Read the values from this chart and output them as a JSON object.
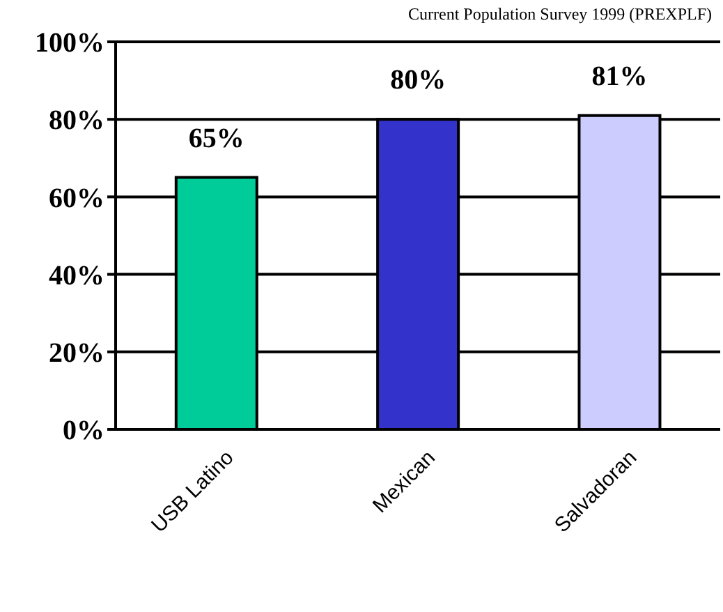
{
  "chart_data": {
    "type": "bar",
    "categories": [
      "USB Latino",
      "Mexican",
      "Salvadoran"
    ],
    "values": [
      65,
      80,
      81
    ],
    "colors": [
      "#00cc99",
      "#3333cc",
      "#ccccff"
    ],
    "value_labels": [
      "65%",
      "80%",
      "81%"
    ],
    "ylim": [
      0,
      100
    ],
    "yticks": [
      {
        "value": 0,
        "label": "0%"
      },
      {
        "value": 20,
        "label": "20%"
      },
      {
        "value": 40,
        "label": "40%"
      },
      {
        "value": 60,
        "label": "60%"
      },
      {
        "value": 80,
        "label": "80%"
      },
      {
        "value": 100,
        "label": "100%"
      }
    ],
    "grid": "y",
    "annotations": [
      "Current Population Survey 1999 (PREXPLF)"
    ]
  }
}
